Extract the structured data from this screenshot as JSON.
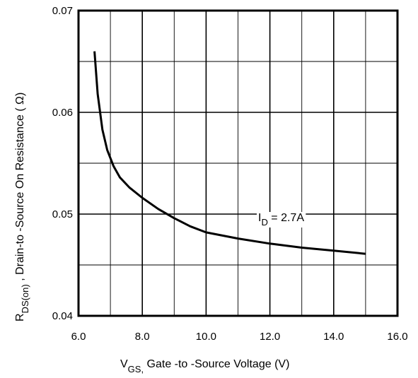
{
  "chart_data": {
    "type": "line",
    "title": "",
    "xlabel": {
      "main": "V",
      "sub": "GS,",
      "rest": " Gate -to -Source Voltage  (V)"
    },
    "ylabel": {
      "main": "R",
      "sub": "DS(on)",
      "rest": " ,   Drain-to -Source On Resistance ( Ω)"
    },
    "xlim": [
      6.0,
      16.0
    ],
    "ylim": [
      0.04,
      0.07
    ],
    "xticks": [
      6.0,
      8.0,
      10.0,
      12.0,
      14.0,
      16.0
    ],
    "xtick_labels": [
      "6.0",
      "8.0",
      "10.0",
      "12.0",
      "14.0",
      "16.0"
    ],
    "yticks": [
      0.04,
      0.05,
      0.06,
      0.07
    ],
    "ytick_labels": [
      "0.04",
      "0.05",
      "0.06",
      "0.07"
    ],
    "grid": true,
    "x_minor_step": 1.0,
    "y_minor_step": 0.005,
    "series": [
      {
        "name": "",
        "color": "#000000",
        "x": [
          6.5,
          6.6,
          6.75,
          6.9,
          7.1,
          7.3,
          7.6,
          8.0,
          8.5,
          9.0,
          9.5,
          10.0,
          11.0,
          12.0,
          13.0,
          14.0,
          15.0
        ],
        "y": [
          0.066,
          0.0618,
          0.0583,
          0.0563,
          0.0547,
          0.0536,
          0.0526,
          0.0516,
          0.0505,
          0.0496,
          0.0488,
          0.0482,
          0.0476,
          0.0471,
          0.0467,
          0.0464,
          0.0461
        ]
      }
    ],
    "annotation": {
      "main": "I",
      "sub": "D",
      "rest": " = 2.7A",
      "x": 13.0,
      "y": 0.0495
    }
  }
}
